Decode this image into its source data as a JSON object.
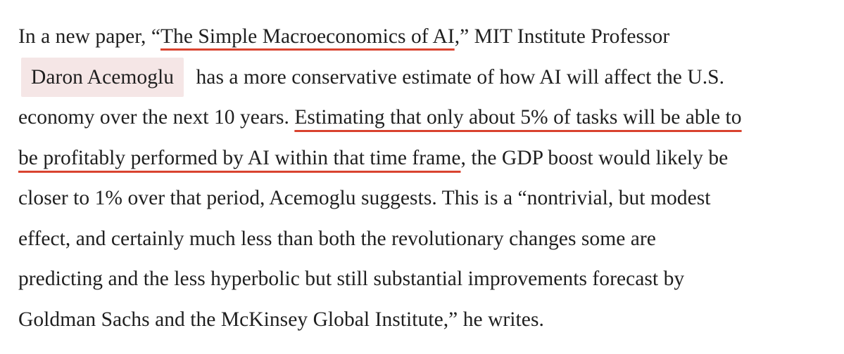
{
  "article": {
    "line1": {
      "before": "In a new paper, “",
      "link": "The Simple Macroeconomics of AI",
      "after": ",” MIT Institute Professor"
    },
    "line2": {
      "author_chip": "Daron Acemoglu",
      "after": "has a more conservative estimate of how AI will affect the U.S."
    },
    "line3": {
      "before": "economy over the next 10 years. ",
      "highlight": "Estimating that only about 5% of tasks will be able to"
    },
    "line4": {
      "highlight": "be profitably performed by AI within that time frame",
      "after": ", the GDP boost would likely be"
    },
    "line5": "closer to 1% over that period, Acemoglu suggests. This is a “nontrivial, but modest",
    "line6": "effect, and certainly much less than both the revolutionary changes some are",
    "line7": "predicting and the less hyperbolic but still substantial improvements forecast by",
    "line8": "Goldman Sachs and the McKinsey Global Institute,” he writes."
  },
  "colors": {
    "text": "#1f1f1f",
    "underline_accent": "#d9432f",
    "chip_background": "#f5e6e6",
    "page_background": "#ffffff"
  }
}
